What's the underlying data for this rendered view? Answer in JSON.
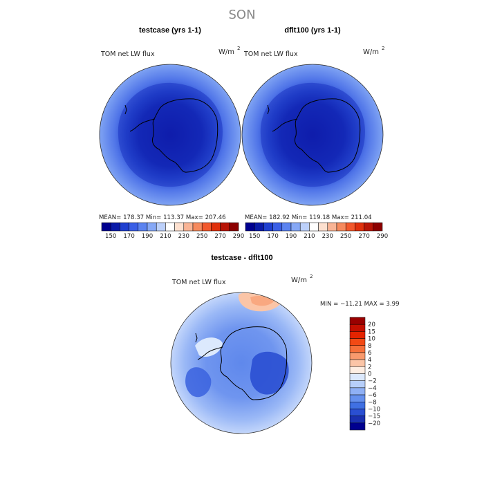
{
  "figure": {
    "season": "SON"
  },
  "panels": [
    {
      "title": "testcase (yrs 1-1)",
      "variable": "TOM net LW flux",
      "units": "W/m",
      "units_sup": "2",
      "stats": {
        "mean": "178.37",
        "min": "113.37",
        "max": "207.46"
      },
      "stats_text": "MEAN= 178.37   Min= 113.37   Max= 207.46"
    },
    {
      "title": "dflt100 (yrs 1-1)",
      "variable": "TOM net LW flux",
      "units": "W/m",
      "units_sup": "2",
      "stats": {
        "mean": "182.92",
        "min": "119.18",
        "max": "211.04"
      },
      "stats_text": "MEAN= 182.92   Min= 119.18   Max= 211.04"
    },
    {
      "title": "testcase - dflt100",
      "variable": "TOM net LW flux",
      "units": "W/m",
      "units_sup": "2",
      "stats": {
        "min": "-11.21",
        "max": "3.99"
      },
      "stats_text": "MIN = −11.21  MAX =   3.99"
    }
  ],
  "colorbars": {
    "absolute": {
      "orientation": "horizontal",
      "tick_labels": [
        "150",
        "170",
        "190",
        "210",
        "230",
        "250",
        "270",
        "290"
      ],
      "colors": [
        "#00008f",
        "#0a1aa8",
        "#1f3fd0",
        "#3a5fe6",
        "#5b83f0",
        "#86a8f6",
        "#bcd0fa",
        "#ffffff",
        "#fde0cf",
        "#f9b495",
        "#f68a5e",
        "#f2582c",
        "#e0300c",
        "#b81406",
        "#8c0000"
      ]
    },
    "difference": {
      "orientation": "vertical",
      "levels": [
        "20",
        "15",
        "10",
        "8",
        "6",
        "4",
        "2",
        "0",
        "−2",
        "−4",
        "−6",
        "−8",
        "−10",
        "−15",
        "−20"
      ],
      "colors": [
        "#9a0000",
        "#c40f00",
        "#e42400",
        "#f24a15",
        "#f6703a",
        "#f99a6d",
        "#fbc5a7",
        "#fdeee3",
        "#dce9fd",
        "#b7cffa",
        "#8fb0f5",
        "#6590ee",
        "#4070e3",
        "#2a4fd2",
        "#1a30b0",
        "#00008f"
      ]
    }
  },
  "chart_data": [
    {
      "type": "heatmap",
      "title": "testcase (yrs 1-1)",
      "variable": "TOM net LW flux",
      "units": "W/m2",
      "projection": "south polar stereographic",
      "mean": 178.37,
      "min": 113.37,
      "max": 207.46,
      "colorbar_levels": [
        150,
        170,
        190,
        210,
        230,
        250,
        270,
        290
      ]
    },
    {
      "type": "heatmap",
      "title": "dflt100 (yrs 1-1)",
      "variable": "TOM net LW flux",
      "units": "W/m2",
      "projection": "south polar stereographic",
      "mean": 182.92,
      "min": 119.18,
      "max": 211.04,
      "colorbar_levels": [
        150,
        170,
        190,
        210,
        230,
        250,
        270,
        290
      ]
    },
    {
      "type": "heatmap",
      "title": "testcase - dflt100",
      "variable": "TOM net LW flux",
      "units": "W/m2",
      "projection": "south polar stereographic",
      "min": -11.21,
      "max": 3.99,
      "colorbar_levels": [
        -20,
        -15,
        -10,
        -8,
        -6,
        -4,
        -2,
        0,
        2,
        4,
        6,
        8,
        10,
        15,
        20
      ]
    }
  ]
}
